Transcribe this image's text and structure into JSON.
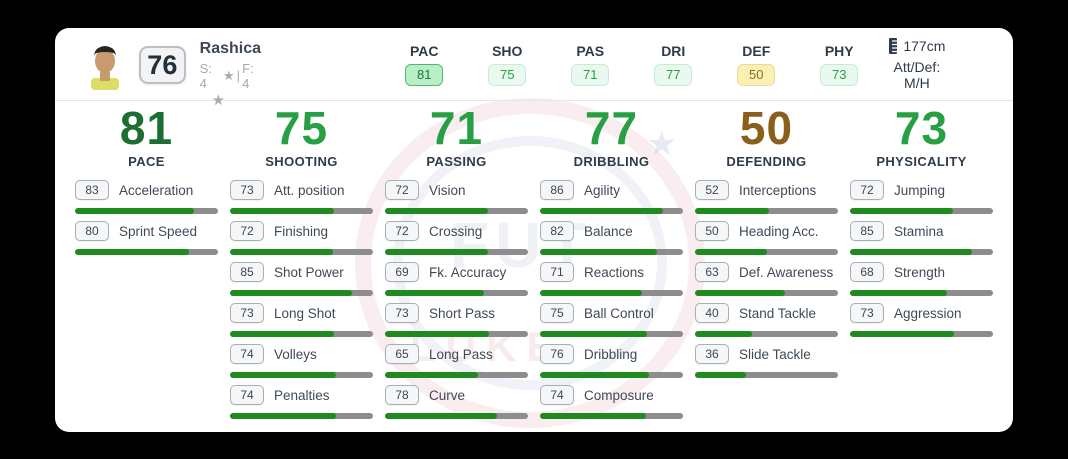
{
  "player": {
    "rating": "76",
    "name": "Rashica",
    "skill_text": "S: 4",
    "divider": "|",
    "foot_text": "F: 4",
    "height": "177cm",
    "workrates": "Att/Def: M/H"
  },
  "icons": {
    "star": "★"
  },
  "top_stats": [
    {
      "code": "PAC",
      "value": "81",
      "style": "strong"
    },
    {
      "code": "SHO",
      "value": "75",
      "style": "light"
    },
    {
      "code": "PAS",
      "value": "71",
      "style": "light"
    },
    {
      "code": "DRI",
      "value": "77",
      "style": "light"
    },
    {
      "code": "DEF",
      "value": "50",
      "style": "yellow"
    },
    {
      "code": "PHY",
      "value": "73",
      "style": "light"
    }
  ],
  "categories": [
    {
      "title": "PACE",
      "value": "81",
      "tone": "dark-green",
      "stats": [
        {
          "label": "Acceleration",
          "value": 83
        },
        {
          "label": "Sprint Speed",
          "value": 80
        }
      ]
    },
    {
      "title": "SHOOTING",
      "value": "75",
      "tone": "green",
      "stats": [
        {
          "label": "Att. position",
          "value": 73
        },
        {
          "label": "Finishing",
          "value": 72
        },
        {
          "label": "Shot Power",
          "value": 85
        },
        {
          "label": "Long Shot",
          "value": 73
        },
        {
          "label": "Volleys",
          "value": 74
        },
        {
          "label": "Penalties",
          "value": 74
        }
      ]
    },
    {
      "title": "PASSING",
      "value": "71",
      "tone": "green",
      "stats": [
        {
          "label": "Vision",
          "value": 72
        },
        {
          "label": "Crossing",
          "value": 72
        },
        {
          "label": "Fk. Accuracy",
          "value": 69
        },
        {
          "label": "Short Pass",
          "value": 73
        },
        {
          "label": "Long Pass",
          "value": 65
        },
        {
          "label": "Curve",
          "value": 78
        }
      ]
    },
    {
      "title": "DRIBBLING",
      "value": "77",
      "tone": "green",
      "stats": [
        {
          "label": "Agility",
          "value": 86
        },
        {
          "label": "Balance",
          "value": 82
        },
        {
          "label": "Reactions",
          "value": 71
        },
        {
          "label": "Ball Control",
          "value": 75
        },
        {
          "label": "Dribbling",
          "value": 76
        },
        {
          "label": "Composure",
          "value": 74
        }
      ]
    },
    {
      "title": "DEFENDING",
      "value": "50",
      "tone": "bronze",
      "stats": [
        {
          "label": "Interceptions",
          "value": 52
        },
        {
          "label": "Heading Acc.",
          "value": 50
        },
        {
          "label": "Def. Awareness",
          "value": 63
        },
        {
          "label": "Stand Tackle",
          "value": 40
        },
        {
          "label": "Slide Tackle",
          "value": 36
        }
      ]
    },
    {
      "title": "PHYSICALITY",
      "value": "73",
      "tone": "green",
      "stats": [
        {
          "label": "Jumping",
          "value": 72
        },
        {
          "label": "Stamina",
          "value": 85
        },
        {
          "label": "Strength",
          "value": 68
        },
        {
          "label": "Aggression",
          "value": 73
        }
      ]
    }
  ],
  "watermark": {
    "text_top": "FUT",
    "text_bottom": "LUKE"
  },
  "colors": {
    "accent_dark_green": "#1e6e34",
    "accent_green": "#27a044",
    "accent_bronze": "#8a5f1c",
    "bar_green": "#1f8b1f",
    "bar_track": "#8d8d8d",
    "badge_yellow_bg": "#faf0b4",
    "badge_strong_bg": "#b9eec8",
    "badge_light_bg": "#e9f9ef",
    "card_bg": "#ffffff",
    "page_bg": "#000000"
  }
}
